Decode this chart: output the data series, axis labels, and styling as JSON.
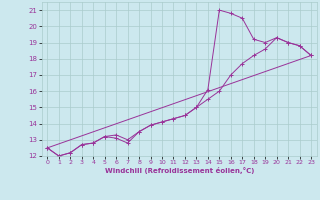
{
  "xlabel": "Windchill (Refroidissement éolien,°C)",
  "bg_color": "#cce8ee",
  "grid_color": "#aacccc",
  "line_color": "#993399",
  "xlim": [
    -0.5,
    23.5
  ],
  "ylim": [
    12,
    21.5
  ],
  "xticks": [
    0,
    1,
    2,
    3,
    4,
    5,
    6,
    7,
    8,
    9,
    10,
    11,
    12,
    13,
    14,
    15,
    16,
    17,
    18,
    19,
    20,
    21,
    22,
    23
  ],
  "yticks": [
    12,
    13,
    14,
    15,
    16,
    17,
    18,
    19,
    20,
    21
  ],
  "series": [
    {
      "x": [
        0,
        1,
        2,
        3,
        4,
        5,
        6,
        7,
        8,
        9,
        10,
        11,
        12,
        13,
        14,
        15,
        16,
        17,
        18,
        19,
        20,
        21,
        22,
        23
      ],
      "y": [
        12.5,
        12.0,
        12.2,
        12.7,
        12.8,
        13.2,
        13.1,
        12.8,
        13.5,
        13.9,
        14.1,
        14.3,
        14.5,
        15.0,
        16.1,
        21.0,
        20.8,
        20.5,
        19.2,
        19.0,
        19.3,
        19.0,
        18.8,
        18.2
      ],
      "markers": true
    },
    {
      "x": [
        0,
        1,
        2,
        3,
        4,
        5,
        6,
        7,
        8,
        9,
        10,
        11,
        12,
        13,
        14,
        15,
        16,
        17,
        18,
        19,
        20,
        21,
        22,
        23
      ],
      "y": [
        12.5,
        12.0,
        12.2,
        12.7,
        12.8,
        13.2,
        13.3,
        13.0,
        13.5,
        13.9,
        14.1,
        14.3,
        14.5,
        15.0,
        15.5,
        16.0,
        17.0,
        17.7,
        18.2,
        18.6,
        19.3,
        19.0,
        18.8,
        18.2
      ],
      "markers": true
    },
    {
      "x": [
        0,
        23
      ],
      "y": [
        12.5,
        18.2
      ],
      "markers": false
    }
  ]
}
